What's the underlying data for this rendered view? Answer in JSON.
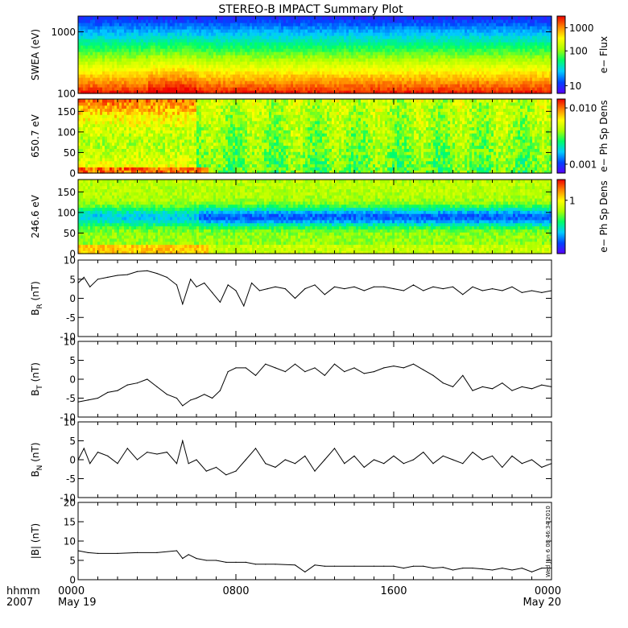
{
  "chart_data": {
    "title": "STEREO-B IMPACT Summary Plot",
    "x_axis": {
      "type": "time",
      "range_hours": [
        0,
        24
      ],
      "row_labels": [
        "hhmm",
        "2007"
      ],
      "ticks": [
        {
          "hours": 0,
          "line1": "0000",
          "line2": "May 19"
        },
        {
          "hours": 8,
          "line1": "0800",
          "line2": ""
        },
        {
          "hours": 16,
          "line1": "1600",
          "line2": ""
        },
        {
          "hours": 24,
          "line1": "0000",
          "line2": "May 20"
        }
      ]
    },
    "spectrograms": [
      {
        "type": "heatmap",
        "ylabel": "SWEA (eV)",
        "ylog": true,
        "ylim": [
          100,
          1800
        ],
        "yticks": [
          {
            "value": 100,
            "label": "100"
          },
          {
            "value": 1000,
            "label": "1000"
          }
        ],
        "colorbar": {
          "label": "e− Flux",
          "colors": [
            "#5a00ff",
            "#0044ff",
            "#00ccff",
            "#00ff66",
            "#aaff00",
            "#ffff00",
            "#ff8800",
            "#ee0000"
          ],
          "ticks": [
            {
              "frac": 0.1,
              "label": "10"
            },
            {
              "frac": 0.55,
              "label": "100"
            },
            {
              "frac": 0.85,
              "label": "1000"
            }
          ]
        }
      },
      {
        "type": "heatmap",
        "ylabel": "650.7 eV",
        "ylim": [
          0,
          180
        ],
        "yticks": [
          {
            "value": 0,
            "label": "0"
          },
          {
            "value": 50,
            "label": "50"
          },
          {
            "value": 100,
            "label": "100"
          },
          {
            "value": 150,
            "label": "150"
          }
        ],
        "colorbar": {
          "label": "e− Ph Sp Dens",
          "colors": [
            "#5a00ff",
            "#0044ff",
            "#00ccff",
            "#00ff66",
            "#aaff00",
            "#ffff00",
            "#ff8800",
            "#ee0000"
          ],
          "ticks": [
            {
              "frac": 0.12,
              "label": "0.001"
            },
            {
              "frac": 0.88,
              "label": "0.010"
            }
          ]
        }
      },
      {
        "type": "heatmap",
        "ylabel": "246.6 eV",
        "ylim": [
          0,
          180
        ],
        "yticks": [
          {
            "value": 0,
            "label": "0"
          },
          {
            "value": 50,
            "label": "50"
          },
          {
            "value": 100,
            "label": "100"
          },
          {
            "value": 150,
            "label": "150"
          }
        ],
        "colorbar": {
          "label": "e− Ph Sp Dens",
          "colors": [
            "#5a00ff",
            "#0044ff",
            "#00ccff",
            "#00ff66",
            "#aaff00",
            "#ffff00",
            "#ff8800",
            "#ee0000"
          ],
          "ticks": [
            {
              "frac": 0.72,
              "label": "1"
            }
          ]
        }
      }
    ],
    "line_panels": [
      {
        "type": "line",
        "ylabel": "B",
        "ylabel_sub": "R",
        "ylabel_unit": " (nT)",
        "ylim": [
          -10,
          10
        ],
        "yticks": [
          -10,
          -5,
          0,
          5,
          10
        ],
        "x": [
          0,
          0.3,
          0.6,
          1,
          1.5,
          2,
          2.5,
          3,
          3.5,
          4,
          4.5,
          5,
          5.3,
          5.7,
          6,
          6.4,
          6.8,
          7.2,
          7.6,
          8,
          8.4,
          8.8,
          9.2,
          9.6,
          10,
          10.5,
          11,
          11.5,
          12,
          12.5,
          13,
          13.5,
          14,
          14.5,
          15,
          15.5,
          16,
          16.5,
          17,
          17.5,
          18,
          18.5,
          19,
          19.5,
          20,
          20.5,
          21,
          21.5,
          22,
          22.5,
          23,
          23.5,
          24
        ],
        "y": [
          4,
          5.5,
          3,
          5,
          5.5,
          6,
          6.2,
          7,
          7.2,
          6.5,
          5.5,
          3.5,
          -1.5,
          5,
          3,
          4,
          1.5,
          -1,
          3.5,
          2,
          -2,
          4,
          2,
          2.5,
          3,
          2.5,
          0,
          2.5,
          3.5,
          1,
          3,
          2.5,
          3,
          2,
          3,
          3,
          2.5,
          2,
          3.5,
          2,
          3,
          2.5,
          3,
          1,
          3,
          2,
          2.5,
          2,
          3,
          1.5,
          2,
          1.5,
          2
        ]
      },
      {
        "type": "line",
        "ylabel": "B",
        "ylabel_sub": "T",
        "ylabel_unit": " (nT)",
        "ylim": [
          -10,
          10
        ],
        "yticks": [
          -10,
          -5,
          0,
          5,
          10
        ],
        "x": [
          0,
          0.5,
          1,
          1.5,
          2,
          2.5,
          3,
          3.5,
          4,
          4.5,
          5,
          5.3,
          5.7,
          6,
          6.4,
          6.8,
          7.2,
          7.6,
          8,
          8.5,
          9,
          9.5,
          10,
          10.5,
          11,
          11.5,
          12,
          12.5,
          13,
          13.5,
          14,
          14.5,
          15,
          15.5,
          16,
          16.5,
          17,
          17.5,
          18,
          18.5,
          19,
          19.5,
          20,
          20.5,
          21,
          21.5,
          22,
          22.5,
          23,
          23.5,
          24
        ],
        "y": [
          -6,
          -5.5,
          -5,
          -3.5,
          -3,
          -1.5,
          -1,
          0,
          -2,
          -4,
          -5,
          -7,
          -5.5,
          -5,
          -4,
          -5,
          -3,
          2,
          3,
          3,
          1,
          4,
          3,
          2,
          4,
          2,
          3,
          1,
          4,
          2,
          3,
          1.5,
          2,
          3,
          3.5,
          3,
          4,
          2.5,
          1,
          -1,
          -2,
          1,
          -3,
          -2,
          -2.5,
          -1,
          -3,
          -2,
          -2.5,
          -1.5,
          -2
        ]
      },
      {
        "type": "line",
        "ylabel": "B",
        "ylabel_sub": "N",
        "ylabel_unit": " (nT)",
        "ylim": [
          -10,
          10
        ],
        "yticks": [
          -10,
          -5,
          0,
          5,
          10
        ],
        "x": [
          0,
          0.3,
          0.6,
          1,
          1.5,
          2,
          2.5,
          3,
          3.5,
          4,
          4.5,
          5,
          5.3,
          5.6,
          6,
          6.5,
          7,
          7.5,
          8,
          8.5,
          9,
          9.5,
          10,
          10.5,
          11,
          11.5,
          12,
          12.5,
          13,
          13.5,
          14,
          14.5,
          15,
          15.5,
          16,
          16.5,
          17,
          17.5,
          18,
          18.5,
          19,
          19.5,
          20,
          20.5,
          21,
          21.5,
          22,
          22.5,
          23,
          23.5,
          24
        ],
        "y": [
          0,
          3,
          -1,
          2,
          1,
          -1,
          3,
          0,
          2,
          1.5,
          2,
          -1,
          5,
          -1,
          0,
          -3,
          -2,
          -4,
          -3,
          0,
          3,
          -1,
          -2,
          0,
          -1,
          1,
          -3,
          0,
          3,
          -1,
          1,
          -2,
          0,
          -1,
          1,
          -1,
          0,
          2,
          -1,
          1,
          0,
          -1,
          2,
          0,
          1,
          -2,
          1,
          -1,
          0,
          -2,
          -1
        ]
      },
      {
        "type": "line",
        "ylabel": "|B| (nT)",
        "ylabel_sub": "",
        "ylabel_unit": "",
        "ylim": [
          0,
          20
        ],
        "yticks": [
          0,
          5,
          10,
          15,
          20
        ],
        "x": [
          0,
          0.5,
          1,
          2,
          3,
          4,
          5,
          5.3,
          5.6,
          6,
          6.5,
          7,
          7.5,
          8,
          8.5,
          9,
          9.5,
          10,
          11,
          11.5,
          12,
          12.5,
          13,
          14,
          15,
          15.5,
          16,
          16.5,
          17,
          17.5,
          18,
          18.5,
          19,
          19.5,
          20,
          20.5,
          21,
          21.5,
          22,
          22.5,
          23,
          23.5,
          24
        ],
        "y": [
          7.5,
          7,
          6.8,
          6.8,
          7,
          7,
          7.5,
          5.5,
          6.5,
          5.5,
          5,
          5,
          4.5,
          4.5,
          4.5,
          4,
          4,
          4,
          3.8,
          2,
          3.8,
          3.5,
          3.5,
          3.5,
          3.5,
          3.5,
          3.5,
          3,
          3.5,
          3.5,
          3,
          3.2,
          2.5,
          3,
          3,
          2.8,
          2.5,
          3,
          2.5,
          3,
          2,
          3,
          3
        ]
      }
    ],
    "footer_text": "Wed Jun  6 08:46:34 2010"
  }
}
